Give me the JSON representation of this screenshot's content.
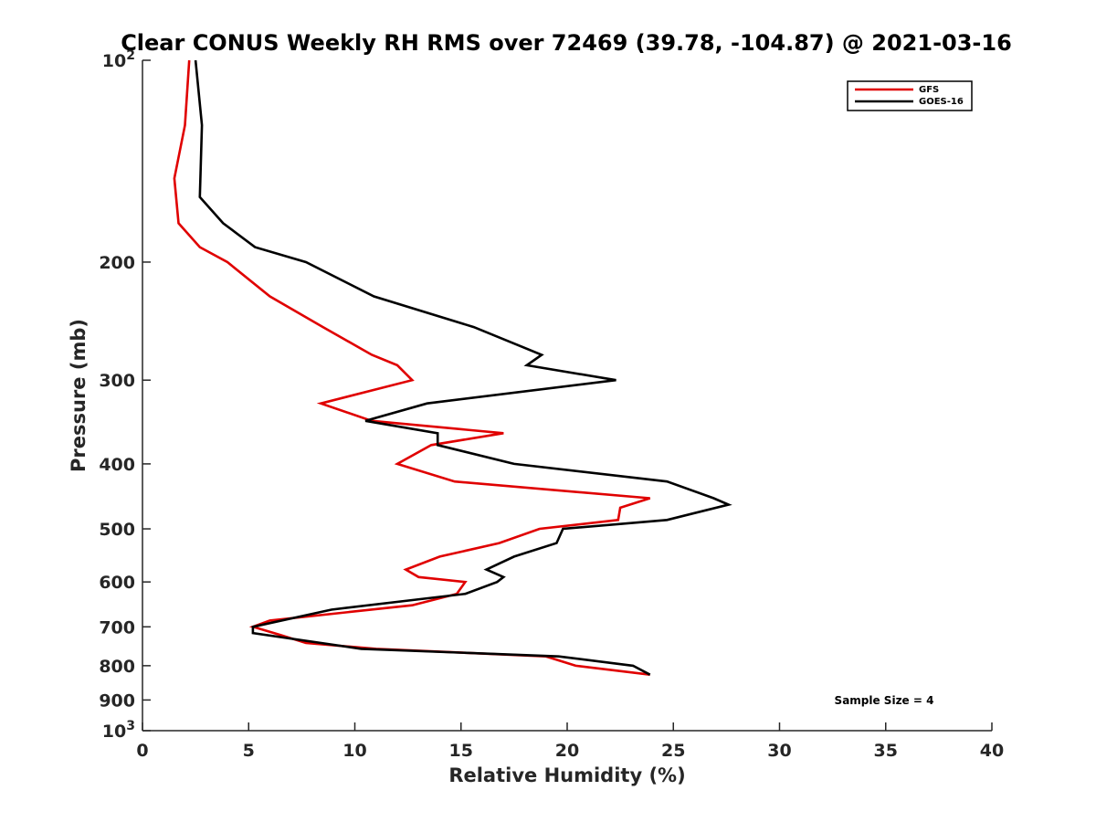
{
  "chart_data": {
    "type": "line",
    "title": "Clear CONUS Weekly RH RMS over 72469 (39.78, -104.87) @ 2021-03-16",
    "xlabel": "Relative Humidity (%)",
    "ylabel": "Pressure (mb)",
    "xlim": [
      0,
      40
    ],
    "ylim": [
      100,
      1000
    ],
    "y_scale": "log",
    "y_reversed": true,
    "x_ticks": [
      "0",
      "5",
      "10",
      "15",
      "20",
      "25",
      "30",
      "35",
      "40"
    ],
    "x_tick_values": [
      0,
      5,
      10,
      15,
      20,
      25,
      30,
      35,
      40
    ],
    "y_ticks": [
      {
        "value": 100,
        "base": "10",
        "exp": "2"
      },
      {
        "value": 200,
        "label": "200"
      },
      {
        "value": 300,
        "label": "300"
      },
      {
        "value": 400,
        "label": "400"
      },
      {
        "value": 500,
        "label": "500"
      },
      {
        "value": 600,
        "label": "600"
      },
      {
        "value": 700,
        "label": "700"
      },
      {
        "value": 800,
        "label": "800"
      },
      {
        "value": 900,
        "label": "900"
      },
      {
        "value": 1000,
        "base": "10",
        "exp": "3"
      }
    ],
    "grid": false,
    "legend_position": "top-right",
    "annotation": "Sample Size = 4",
    "series": [
      {
        "name": "GFS",
        "color": "#e00000",
        "points": [
          [
            2.2,
            100
          ],
          [
            2.0,
            125
          ],
          [
            1.5,
            150
          ],
          [
            1.7,
            175
          ],
          [
            2.7,
            190
          ],
          [
            4.0,
            200
          ],
          [
            6.0,
            225
          ],
          [
            8.5,
            250
          ],
          [
            10.8,
            275
          ],
          [
            12.0,
            285
          ],
          [
            12.7,
            300
          ],
          [
            8.4,
            325
          ],
          [
            10.8,
            345
          ],
          [
            17.0,
            360
          ],
          [
            13.6,
            375
          ],
          [
            12.0,
            400
          ],
          [
            14.7,
            425
          ],
          [
            23.9,
            450
          ],
          [
            22.5,
            465
          ],
          [
            22.4,
            485
          ],
          [
            18.7,
            500
          ],
          [
            16.8,
            525
          ],
          [
            14.0,
            550
          ],
          [
            12.4,
            575
          ],
          [
            13.0,
            590
          ],
          [
            15.2,
            600
          ],
          [
            14.8,
            625
          ],
          [
            12.7,
            650
          ],
          [
            6.0,
            685
          ],
          [
            5.2,
            700
          ],
          [
            6.5,
            720
          ],
          [
            7.7,
            740
          ],
          [
            11.0,
            755
          ],
          [
            19.0,
            775
          ],
          [
            20.4,
            800
          ],
          [
            23.9,
            825
          ]
        ]
      },
      {
        "name": "GOES-16",
        "color": "#000000",
        "points": [
          [
            2.5,
            100
          ],
          [
            2.8,
            125
          ],
          [
            2.7,
            160
          ],
          [
            3.8,
            175
          ],
          [
            5.3,
            190
          ],
          [
            7.7,
            200
          ],
          [
            10.9,
            225
          ],
          [
            15.6,
            250
          ],
          [
            18.8,
            275
          ],
          [
            18.1,
            285
          ],
          [
            22.3,
            300
          ],
          [
            13.4,
            325
          ],
          [
            10.5,
            345
          ],
          [
            13.9,
            360
          ],
          [
            13.9,
            375
          ],
          [
            17.5,
            400
          ],
          [
            24.7,
            425
          ],
          [
            26.9,
            450
          ],
          [
            27.6,
            460
          ],
          [
            24.7,
            485
          ],
          [
            19.8,
            500
          ],
          [
            19.5,
            525
          ],
          [
            17.5,
            550
          ],
          [
            16.2,
            575
          ],
          [
            17.0,
            590
          ],
          [
            16.7,
            600
          ],
          [
            15.2,
            625
          ],
          [
            8.9,
            660
          ],
          [
            5.2,
            700
          ],
          [
            5.2,
            715
          ],
          [
            10.3,
            755
          ],
          [
            19.6,
            775
          ],
          [
            23.1,
            800
          ],
          [
            23.9,
            825
          ]
        ]
      }
    ]
  }
}
